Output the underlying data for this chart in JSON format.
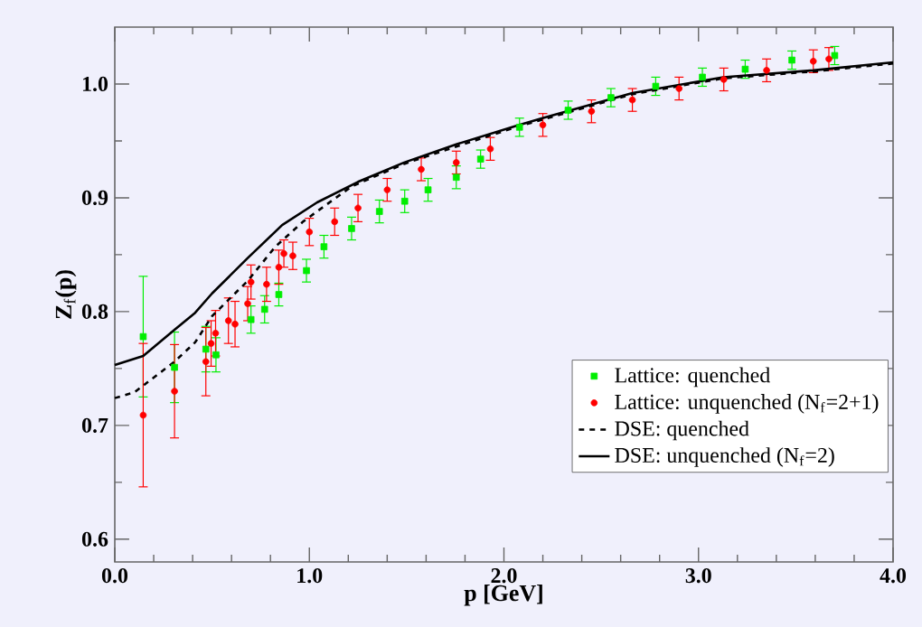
{
  "chart_data": {
    "type": "scatter",
    "xlabel": "**p [GeV]**",
    "ylabel": "**Z**$_{f}$**(p)**",
    "xlim": [
      0,
      4
    ],
    "ylim": [
      0.58,
      1.05
    ],
    "xticks": [
      {
        "value": 0,
        "label": "0.0"
      },
      {
        "value": 1,
        "label": "1.0"
      },
      {
        "value": 2,
        "label": "2.0"
      },
      {
        "value": 3,
        "label": "3.0"
      },
      {
        "value": 4,
        "label": "4.0"
      }
    ],
    "yticks": [
      0.6,
      0.7,
      0.8,
      0.9,
      {
        "value": 1,
        "label": "1.0"
      }
    ],
    "grid": false,
    "legend": "bottom right",
    "series": [
      {
        "name": "Lattice: quenched",
        "marker": "square",
        "color": "#00ee00",
        "x": [
          0.146,
          0.307,
          0.468,
          0.52,
          0.7,
          0.77,
          0.843,
          0.985,
          1.075,
          1.217,
          1.36,
          1.49,
          1.61,
          1.755,
          1.88,
          2.08,
          2.33,
          2.55,
          2.78,
          3.02,
          3.24,
          3.48,
          3.7
        ],
        "values": [
          0.778,
          0.751,
          0.767,
          0.762,
          0.793,
          0.802,
          0.815,
          0.836,
          0.857,
          0.873,
          0.888,
          0.897,
          0.907,
          0.918,
          0.934,
          0.962,
          0.977,
          0.988,
          0.998,
          1.006,
          1.013,
          1.021,
          1.025
        ],
        "errors": [
          0.053,
          0.031,
          0.02,
          0.015,
          0.012,
          0.012,
          0.01,
          0.01,
          0.01,
          0.01,
          0.01,
          0.01,
          0.01,
          0.01,
          0.008,
          0.008,
          0.008,
          0.008,
          0.008,
          0.008,
          0.008,
          0.008,
          0.008
        ]
      },
      {
        "name": "Lattice: unquenched (N$_{f}$=2+1)",
        "marker": "circle",
        "color": "#ff0000",
        "x": [
          0.146,
          0.307,
          0.468,
          0.495,
          0.518,
          0.584,
          0.618,
          0.683,
          0.7,
          0.78,
          0.843,
          0.869,
          0.915,
          1.0,
          1.13,
          1.25,
          1.4,
          1.575,
          1.755,
          1.93,
          2.2,
          2.45,
          2.66,
          2.9,
          3.13,
          3.35,
          3.59,
          3.67
        ],
        "values": [
          0.709,
          0.73,
          0.756,
          0.772,
          0.781,
          0.792,
          0.789,
          0.807,
          0.826,
          0.824,
          0.839,
          0.851,
          0.849,
          0.87,
          0.879,
          0.891,
          0.907,
          0.925,
          0.931,
          0.943,
          0.964,
          0.976,
          0.986,
          0.996,
          1.004,
          1.012,
          1.02,
          1.022
        ],
        "errors": [
          0.063,
          0.041,
          0.03,
          0.02,
          0.02,
          0.02,
          0.02,
          0.015,
          0.015,
          0.015,
          0.015,
          0.012,
          0.012,
          0.012,
          0.012,
          0.012,
          0.01,
          0.01,
          0.01,
          0.01,
          0.01,
          0.01,
          0.01,
          0.01,
          0.01,
          0.01,
          0.01,
          0.01
        ]
      },
      {
        "name": "DSE: quenched",
        "type": "line",
        "line_style": "dashed",
        "marker": "none",
        "color": "#000000",
        "x": [
          0,
          0.1,
          0.307,
          0.413,
          0.5,
          0.683,
          0.825,
          0.967,
          1.217,
          1.49,
          1.755,
          2.06,
          2.66,
          3.127,
          3.59,
          4.0
        ],
        "values": [
          0.724,
          0.729,
          0.756,
          0.773,
          0.796,
          0.827,
          0.857,
          0.879,
          0.91,
          0.93,
          0.945,
          0.962,
          0.991,
          1.005,
          1.011,
          1.018
        ]
      },
      {
        "name": "DSE: unquenched (N$_{f}$=2)",
        "type": "line",
        "line_style": "solid",
        "marker": "none",
        "color": "#000000",
        "x": [
          0,
          0.146,
          0.307,
          0.413,
          0.5,
          0.683,
          0.86,
          1.04,
          1.25,
          1.487,
          1.755,
          2.06,
          2.198,
          2.66,
          3.127,
          3.59,
          4.0
        ],
        "values": [
          0.753,
          0.761,
          0.784,
          0.799,
          0.816,
          0.847,
          0.876,
          0.896,
          0.914,
          0.931,
          0.947,
          0.963,
          0.97,
          0.992,
          1.006,
          1.012,
          1.019
        ]
      }
    ]
  }
}
